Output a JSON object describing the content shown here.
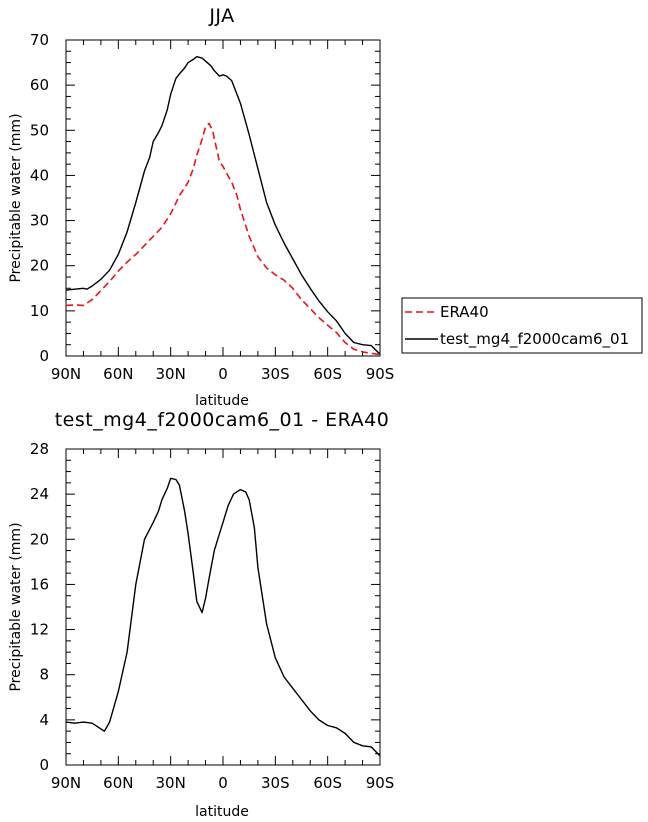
{
  "chart_data": [
    {
      "type": "line",
      "title": "JJA",
      "xlabel": "latitude",
      "ylabel": "Precipitable water (mm)",
      "x_ticks": [
        "90N",
        "60N",
        "30N",
        "0",
        "30S",
        "60S",
        "90S"
      ],
      "y_ticks": [
        "0",
        "10",
        "20",
        "30",
        "40",
        "50",
        "60",
        "70"
      ],
      "xlim": [
        90,
        -90
      ],
      "ylim": [
        0,
        70
      ],
      "grid": false,
      "legend_position": "right",
      "series": [
        {
          "name": "ERA40",
          "color": "#e8141c",
          "dash": "dashed",
          "x": [
            90,
            85,
            80,
            75,
            70,
            65,
            60,
            55,
            50,
            45,
            40,
            35,
            30,
            25,
            20,
            17,
            15,
            12,
            10,
            8,
            6,
            4,
            2,
            0,
            -2,
            -5,
            -8,
            -10,
            -15,
            -20,
            -25,
            -30,
            -35,
            -40,
            -45,
            -50,
            -55,
            -60,
            -65,
            -70,
            -75,
            -80,
            -85,
            -90
          ],
          "y": [
            11.2,
            11.3,
            11.2,
            12.5,
            14.5,
            16.5,
            18.8,
            20.8,
            22.5,
            24.5,
            26.5,
            28.5,
            31.5,
            35.5,
            38.5,
            41.5,
            44.5,
            48.0,
            50.8,
            51.5,
            50.0,
            46.5,
            43.0,
            42.0,
            40.5,
            38.5,
            35.5,
            32.5,
            26.5,
            22.0,
            19.5,
            18.0,
            16.8,
            15.0,
            12.5,
            10.5,
            8.5,
            6.8,
            5.2,
            3.0,
            1.5,
            0.9,
            0.6,
            0.3
          ]
        },
        {
          "name": "test_mg4_f2000cam6_01",
          "color": "#000000",
          "dash": "solid",
          "x": [
            90,
            85,
            80,
            78,
            75,
            70,
            65,
            60,
            55,
            50,
            45,
            42,
            40,
            37,
            35,
            32,
            30,
            27,
            25,
            22,
            20,
            17,
            15,
            12,
            10,
            7,
            5,
            2,
            0,
            -2,
            -5,
            -10,
            -15,
            -20,
            -25,
            -30,
            -35,
            -40,
            -45,
            -50,
            -55,
            -60,
            -65,
            -70,
            -75,
            -80,
            -85,
            -90
          ],
          "y": [
            14.6,
            14.8,
            15.0,
            14.8,
            15.5,
            17.0,
            19.0,
            22.5,
            27.5,
            34.0,
            41.0,
            44.0,
            47.5,
            49.5,
            51.0,
            54.5,
            58.0,
            61.5,
            62.5,
            63.8,
            65.0,
            65.7,
            66.3,
            66.0,
            65.3,
            64.3,
            63.2,
            62.0,
            62.3,
            62.0,
            61.0,
            56.0,
            49.0,
            41.5,
            34.0,
            29.0,
            25.0,
            21.5,
            18.0,
            15.0,
            12.2,
            9.8,
            7.8,
            5.0,
            3.0,
            2.5,
            2.3,
            0.4
          ]
        }
      ]
    },
    {
      "type": "line",
      "title": "test_mg4_f2000cam6_01 - ERA40",
      "xlabel": "latitude",
      "ylabel": "Precipitable water (mm)",
      "x_ticks": [
        "90N",
        "60N",
        "30N",
        "0",
        "30S",
        "60S",
        "90S"
      ],
      "y_ticks": [
        "0",
        "4",
        "8",
        "12",
        "16",
        "20",
        "24",
        "28"
      ],
      "xlim": [
        90,
        -90
      ],
      "ylim": [
        0,
        28
      ],
      "grid": false,
      "series": [
        {
          "color": "#000000",
          "dash": "solid",
          "x": [
            90,
            85,
            80,
            75,
            70,
            68,
            65,
            60,
            55,
            50,
            45,
            40,
            37,
            35,
            32,
            30,
            27,
            25,
            22,
            20,
            17,
            15,
            12,
            10,
            8,
            5,
            2,
            0,
            -3,
            -6,
            -10,
            -13,
            -15,
            -18,
            -20,
            -25,
            -30,
            -35,
            -40,
            -45,
            -50,
            -55,
            -60,
            -65,
            -70,
            -75,
            -80,
            -85,
            -90
          ],
          "y": [
            3.8,
            3.7,
            3.8,
            3.7,
            3.2,
            3.0,
            3.8,
            6.5,
            10.0,
            16.0,
            20.0,
            21.5,
            22.5,
            23.5,
            24.5,
            25.4,
            25.3,
            24.8,
            22.5,
            20.5,
            17.0,
            14.5,
            13.5,
            14.8,
            16.5,
            19.0,
            20.5,
            21.5,
            23.0,
            24.0,
            24.4,
            24.2,
            23.5,
            21.0,
            17.5,
            12.5,
            9.5,
            7.8,
            6.8,
            5.8,
            4.8,
            4.0,
            3.5,
            3.3,
            2.8,
            2.0,
            1.7,
            1.6,
            0.8
          ]
        }
      ]
    }
  ]
}
